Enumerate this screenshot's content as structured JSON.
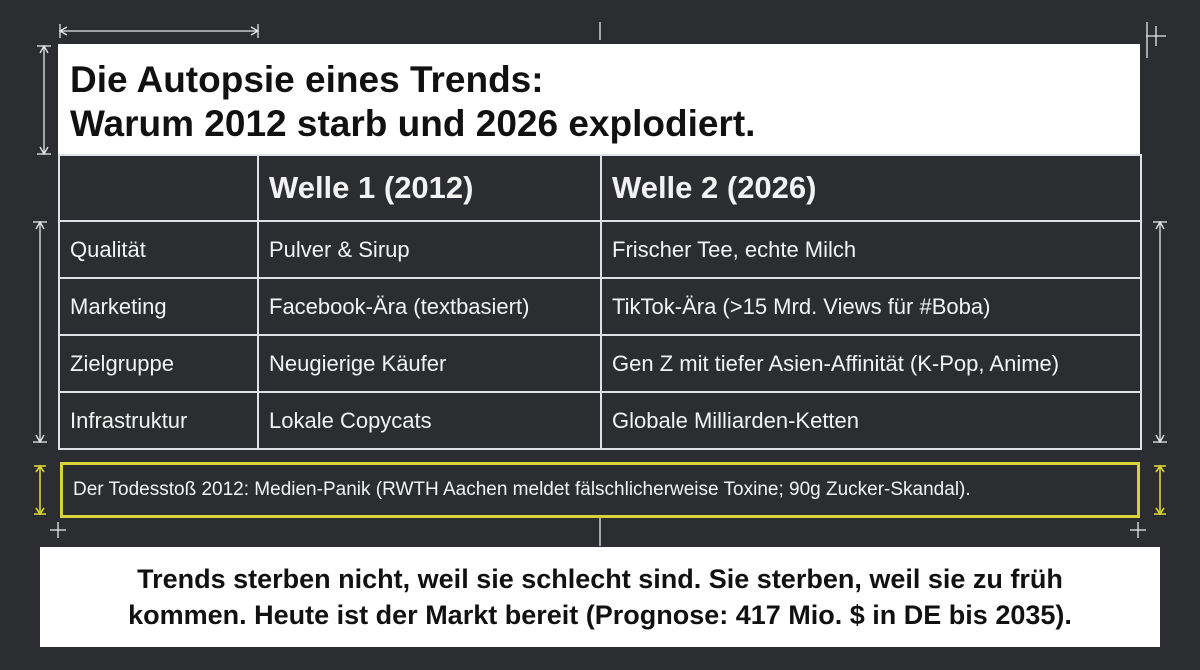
{
  "colors": {
    "background": "#2b2d31",
    "wave1": "#8e9196",
    "wave2": "#c967e8",
    "highlight_border": "#d8d33a"
  },
  "title": {
    "line1": "Die Autopsie eines Trends:",
    "line2": "Warum 2012 starb und 2026 explodiert."
  },
  "table": {
    "headers": [
      "",
      "Welle 1 (2012)",
      "Welle 2 (2026)"
    ],
    "rows": [
      {
        "label": "Qualität",
        "wave1": "Pulver & Sirup",
        "wave2": "Frischer Tee, echte Milch"
      },
      {
        "label": "Marketing",
        "wave1": "Facebook-Ära (textbasiert)",
        "wave2": "TikTok-Ära (>15 Mrd. Views für #Boba)"
      },
      {
        "label": "Zielgruppe",
        "wave1": "Neugierige Käufer",
        "wave2": "Gen Z mit tiefer Asien-Affinität (K-Pop, Anime)"
      },
      {
        "label": "Infrastruktur",
        "wave1": "Lokale Copycats",
        "wave2": "Globale Milliarden-Ketten"
      }
    ]
  },
  "death_blow": "Der Todesstoß 2012: Medien-Panik (RWTH Aachen meldet fälschlicherweise Toxine; 90g Zucker-Skandal).",
  "conclusion": {
    "line1": "Trends sterben nicht, weil sie schlecht sind. Sie sterben, weil sie zu früh",
    "line2": "kommen. Heute ist der Markt bereit (Prognose: 417 Mio. $ in DE bis 2035)."
  }
}
